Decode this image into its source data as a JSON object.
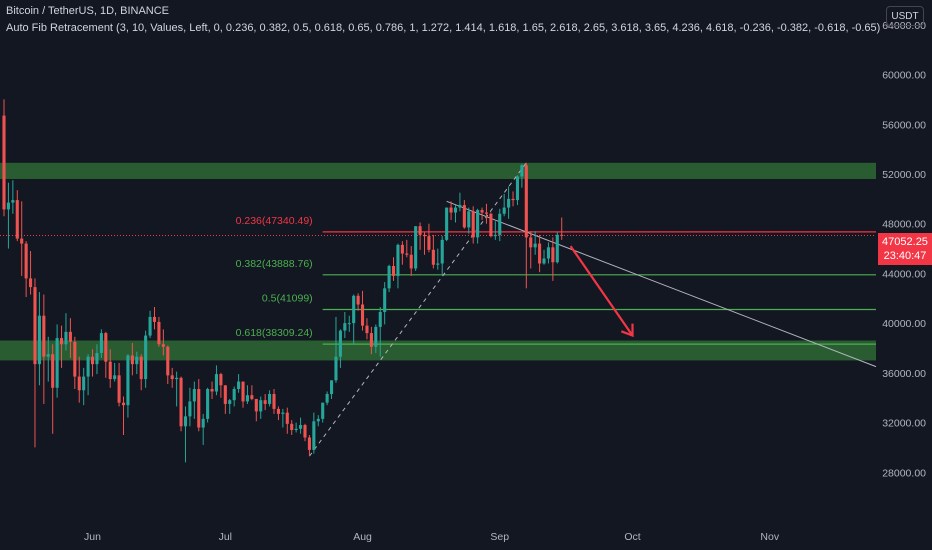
{
  "header": {
    "title": "Bitcoin / TetherUS, 1D, BINANCE",
    "indicator": "Auto Fib Retracement (3, 10, Values, Left, 0, 0.236, 0.382, 0.5, 0.618, 0.65, 0.786, 1, 1.272, 1.414, 1.618, 1.65, 2.618, 2.65, 3.618, 3.65, 4.236, 4.618, -0.236, -0.382, -0.618, -0.65)",
    "currency": "USDT"
  },
  "price_tag": {
    "price": "47052.25",
    "countdown": "23:40:47"
  },
  "colors": {
    "background": "#131722",
    "up": "#26a69a",
    "down": "#ef5350",
    "zone": "#2e6a34",
    "fib_red": "#f23645",
    "fib_green": "#4caf50",
    "arrow": "#f23645",
    "trendline": "#b2b5be"
  },
  "chart_data": {
    "type": "candlestick",
    "symbol": "BTCUSDT",
    "timeframe": "1D",
    "x_range": [
      "2021-05-12",
      "2021-11-25"
    ],
    "ylim": [
      24000,
      66000
    ],
    "y_ticks": [
      28000,
      32000,
      36000,
      40000,
      44000,
      48000,
      52000,
      56000,
      60000,
      64000
    ],
    "y_tick_labels": [
      "28000.00",
      "32000.00",
      "36000.00",
      "40000.00",
      "44000.00",
      "48000.00",
      "52000.00",
      "56000.00",
      "60000.00",
      "64000.00"
    ],
    "x_ticks": [
      "2021-06-01",
      "2021-07-01",
      "2021-08-01",
      "2021-09-01",
      "2021-10-01",
      "2021-11-01"
    ],
    "x_tick_labels": [
      "Jun",
      "Jul",
      "Aug",
      "Sep",
      "Oct",
      "Nov"
    ],
    "current_price": 47052.25,
    "candles": [
      {
        "date": "2021-05-12",
        "o": 56700,
        "h": 58000,
        "l": 48600,
        "c": 49150
      },
      {
        "date": "2021-05-13",
        "o": 49150,
        "h": 51300,
        "l": 46000,
        "c": 49700
      },
      {
        "date": "2021-05-14",
        "o": 49700,
        "h": 51500,
        "l": 48800,
        "c": 49900
      },
      {
        "date": "2021-05-15",
        "o": 49900,
        "h": 50700,
        "l": 46600,
        "c": 46800
      },
      {
        "date": "2021-05-16",
        "o": 46800,
        "h": 49800,
        "l": 43800,
        "c": 46400
      },
      {
        "date": "2021-05-17",
        "o": 46400,
        "h": 46600,
        "l": 42100,
        "c": 43600
      },
      {
        "date": "2021-05-18",
        "o": 43600,
        "h": 45800,
        "l": 42300,
        "c": 42900
      },
      {
        "date": "2021-05-19",
        "o": 42900,
        "h": 43600,
        "l": 30000,
        "c": 36700
      },
      {
        "date": "2021-05-20",
        "o": 36700,
        "h": 42500,
        "l": 35000,
        "c": 40600
      },
      {
        "date": "2021-05-21",
        "o": 40600,
        "h": 42300,
        "l": 33500,
        "c": 37300
      },
      {
        "date": "2021-05-22",
        "o": 37300,
        "h": 38900,
        "l": 35300,
        "c": 37500
      },
      {
        "date": "2021-05-23",
        "o": 37500,
        "h": 38300,
        "l": 31100,
        "c": 34800
      },
      {
        "date": "2021-05-24",
        "o": 34800,
        "h": 39900,
        "l": 34000,
        "c": 38800
      },
      {
        "date": "2021-05-25",
        "o": 38800,
        "h": 39800,
        "l": 36400,
        "c": 38300
      },
      {
        "date": "2021-05-26",
        "o": 38300,
        "h": 40800,
        "l": 37800,
        "c": 39300
      },
      {
        "date": "2021-05-27",
        "o": 39300,
        "h": 40400,
        "l": 37200,
        "c": 38500
      },
      {
        "date": "2021-05-28",
        "o": 38500,
        "h": 38900,
        "l": 34700,
        "c": 35700
      },
      {
        "date": "2021-05-29",
        "o": 35700,
        "h": 37300,
        "l": 33600,
        "c": 34600
      },
      {
        "date": "2021-05-30",
        "o": 34600,
        "h": 36400,
        "l": 33400,
        "c": 35700
      },
      {
        "date": "2021-05-31",
        "o": 35700,
        "h": 37500,
        "l": 34200,
        "c": 37300
      },
      {
        "date": "2021-06-01",
        "o": 37300,
        "h": 37900,
        "l": 35700,
        "c": 36700
      },
      {
        "date": "2021-06-02",
        "o": 36700,
        "h": 38300,
        "l": 35900,
        "c": 37600
      },
      {
        "date": "2021-06-03",
        "o": 37600,
        "h": 39500,
        "l": 37200,
        "c": 39200
      },
      {
        "date": "2021-06-04",
        "o": 39200,
        "h": 39300,
        "l": 35600,
        "c": 36900
      },
      {
        "date": "2021-06-05",
        "o": 36900,
        "h": 37900,
        "l": 34800,
        "c": 35500
      },
      {
        "date": "2021-06-06",
        "o": 35500,
        "h": 36800,
        "l": 35300,
        "c": 35800
      },
      {
        "date": "2021-06-07",
        "o": 35800,
        "h": 36800,
        "l": 33300,
        "c": 33600
      },
      {
        "date": "2021-06-08",
        "o": 33600,
        "h": 34100,
        "l": 31000,
        "c": 33400
      },
      {
        "date": "2021-06-09",
        "o": 33400,
        "h": 37500,
        "l": 32400,
        "c": 37400
      },
      {
        "date": "2021-06-10",
        "o": 37400,
        "h": 38400,
        "l": 35800,
        "c": 36700
      },
      {
        "date": "2021-06-11",
        "o": 36700,
        "h": 37700,
        "l": 35900,
        "c": 37300
      },
      {
        "date": "2021-06-12",
        "o": 37300,
        "h": 37500,
        "l": 34600,
        "c": 35500
      },
      {
        "date": "2021-06-13",
        "o": 35500,
        "h": 39400,
        "l": 34800,
        "c": 39000
      },
      {
        "date": "2021-06-14",
        "o": 39000,
        "h": 41000,
        "l": 38800,
        "c": 40500
      },
      {
        "date": "2021-06-15",
        "o": 40500,
        "h": 41300,
        "l": 39500,
        "c": 40100
      },
      {
        "date": "2021-06-16",
        "o": 40100,
        "h": 40500,
        "l": 38100,
        "c": 38300
      },
      {
        "date": "2021-06-17",
        "o": 38300,
        "h": 39500,
        "l": 37400,
        "c": 38100
      },
      {
        "date": "2021-06-18",
        "o": 38100,
        "h": 38200,
        "l": 35100,
        "c": 35800
      },
      {
        "date": "2021-06-19",
        "o": 35800,
        "h": 36400,
        "l": 34800,
        "c": 35500
      },
      {
        "date": "2021-06-20",
        "o": 35500,
        "h": 36100,
        "l": 33300,
        "c": 35600
      },
      {
        "date": "2021-06-21",
        "o": 35600,
        "h": 35700,
        "l": 31300,
        "c": 31700
      },
      {
        "date": "2021-06-22",
        "o": 31700,
        "h": 33300,
        "l": 28800,
        "c": 32500
      },
      {
        "date": "2021-06-23",
        "o": 32500,
        "h": 34800,
        "l": 31700,
        "c": 33700
      },
      {
        "date": "2021-06-24",
        "o": 33700,
        "h": 35300,
        "l": 32300,
        "c": 34700
      },
      {
        "date": "2021-06-25",
        "o": 34700,
        "h": 35500,
        "l": 31300,
        "c": 31600
      },
      {
        "date": "2021-06-26",
        "o": 31600,
        "h": 32700,
        "l": 30200,
        "c": 32300
      },
      {
        "date": "2021-06-27",
        "o": 32300,
        "h": 34800,
        "l": 32000,
        "c": 34700
      },
      {
        "date": "2021-06-28",
        "o": 34700,
        "h": 35300,
        "l": 33900,
        "c": 34500
      },
      {
        "date": "2021-06-29",
        "o": 34500,
        "h": 36600,
        "l": 34200,
        "c": 35900
      },
      {
        "date": "2021-06-30",
        "o": 35900,
        "h": 36000,
        "l": 34000,
        "c": 35000
      },
      {
        "date": "2021-07-01",
        "o": 35000,
        "h": 35000,
        "l": 32700,
        "c": 33500
      },
      {
        "date": "2021-07-02",
        "o": 33500,
        "h": 33900,
        "l": 32700,
        "c": 33800
      },
      {
        "date": "2021-07-03",
        "o": 33800,
        "h": 34900,
        "l": 33300,
        "c": 34700
      },
      {
        "date": "2021-07-04",
        "o": 34700,
        "h": 35900,
        "l": 34400,
        "c": 35300
      },
      {
        "date": "2021-07-05",
        "o": 35300,
        "h": 35300,
        "l": 33200,
        "c": 33700
      },
      {
        "date": "2021-07-06",
        "o": 33700,
        "h": 35000,
        "l": 33500,
        "c": 34200
      },
      {
        "date": "2021-07-07",
        "o": 34200,
        "h": 35000,
        "l": 33800,
        "c": 33900
      },
      {
        "date": "2021-07-08",
        "o": 33900,
        "h": 33900,
        "l": 32100,
        "c": 32900
      },
      {
        "date": "2021-07-09",
        "o": 32900,
        "h": 34100,
        "l": 32300,
        "c": 33800
      },
      {
        "date": "2021-07-10",
        "o": 33800,
        "h": 34300,
        "l": 33000,
        "c": 33500
      },
      {
        "date": "2021-07-11",
        "o": 33500,
        "h": 34600,
        "l": 33300,
        "c": 34300
      },
      {
        "date": "2021-07-12",
        "o": 34300,
        "h": 34700,
        "l": 32700,
        "c": 33100
      },
      {
        "date": "2021-07-13",
        "o": 33100,
        "h": 33300,
        "l": 32200,
        "c": 32700
      },
      {
        "date": "2021-07-14",
        "o": 32700,
        "h": 33100,
        "l": 31600,
        "c": 32800
      },
      {
        "date": "2021-07-15",
        "o": 32800,
        "h": 33200,
        "l": 31100,
        "c": 31900
      },
      {
        "date": "2021-07-16",
        "o": 31900,
        "h": 32200,
        "l": 31000,
        "c": 31400
      },
      {
        "date": "2021-07-17",
        "o": 31400,
        "h": 32000,
        "l": 31200,
        "c": 31500
      },
      {
        "date": "2021-07-18",
        "o": 31500,
        "h": 32400,
        "l": 31100,
        "c": 31800
      },
      {
        "date": "2021-07-19",
        "o": 31800,
        "h": 31900,
        "l": 30500,
        "c": 30800
      },
      {
        "date": "2021-07-20",
        "o": 30800,
        "h": 31000,
        "l": 29300,
        "c": 29800
      },
      {
        "date": "2021-07-21",
        "o": 29800,
        "h": 32800,
        "l": 29500,
        "c": 32100
      },
      {
        "date": "2021-07-22",
        "o": 32100,
        "h": 32600,
        "l": 31700,
        "c": 32300
      },
      {
        "date": "2021-07-23",
        "o": 32300,
        "h": 33600,
        "l": 32000,
        "c": 33600
      },
      {
        "date": "2021-07-24",
        "o": 33600,
        "h": 34500,
        "l": 33400,
        "c": 34300
      },
      {
        "date": "2021-07-25",
        "o": 34300,
        "h": 35400,
        "l": 33900,
        "c": 35400
      },
      {
        "date": "2021-07-26",
        "o": 35400,
        "h": 40500,
        "l": 35200,
        "c": 37300
      },
      {
        "date": "2021-07-27",
        "o": 37300,
        "h": 39500,
        "l": 36400,
        "c": 39400
      },
      {
        "date": "2021-07-28",
        "o": 39400,
        "h": 40900,
        "l": 38800,
        "c": 40000
      },
      {
        "date": "2021-07-29",
        "o": 40000,
        "h": 40600,
        "l": 39300,
        "c": 40000
      },
      {
        "date": "2021-07-30",
        "o": 40000,
        "h": 42300,
        "l": 38300,
        "c": 42200
      },
      {
        "date": "2021-07-31",
        "o": 42200,
        "h": 42400,
        "l": 41000,
        "c": 41500
      },
      {
        "date": "2021-08-01",
        "o": 41500,
        "h": 42600,
        "l": 39400,
        "c": 39800
      },
      {
        "date": "2021-08-02",
        "o": 39800,
        "h": 40400,
        "l": 38700,
        "c": 39200
      },
      {
        "date": "2021-08-03",
        "o": 39200,
        "h": 39700,
        "l": 37500,
        "c": 38100
      },
      {
        "date": "2021-08-04",
        "o": 38100,
        "h": 39900,
        "l": 37600,
        "c": 39700
      },
      {
        "date": "2021-08-05",
        "o": 39700,
        "h": 41300,
        "l": 37300,
        "c": 40900
      },
      {
        "date": "2021-08-06",
        "o": 40900,
        "h": 43300,
        "l": 39900,
        "c": 42800
      },
      {
        "date": "2021-08-07",
        "o": 42800,
        "h": 44700,
        "l": 42500,
        "c": 44600
      },
      {
        "date": "2021-08-08",
        "o": 44600,
        "h": 45300,
        "l": 43400,
        "c": 43800
      },
      {
        "date": "2021-08-09",
        "o": 43800,
        "h": 46400,
        "l": 42800,
        "c": 46300
      },
      {
        "date": "2021-08-10",
        "o": 46300,
        "h": 46600,
        "l": 44700,
        "c": 45600
      },
      {
        "date": "2021-08-11",
        "o": 45600,
        "h": 46700,
        "l": 45300,
        "c": 45500
      },
      {
        "date": "2021-08-12",
        "o": 45500,
        "h": 46200,
        "l": 43800,
        "c": 44400
      },
      {
        "date": "2021-08-13",
        "o": 44400,
        "h": 47800,
        "l": 44200,
        "c": 47800
      },
      {
        "date": "2021-08-14",
        "o": 47800,
        "h": 48100,
        "l": 45900,
        "c": 47100
      },
      {
        "date": "2021-08-15",
        "o": 47100,
        "h": 47300,
        "l": 45500,
        "c": 47000
      },
      {
        "date": "2021-08-16",
        "o": 47000,
        "h": 48000,
        "l": 45700,
        "c": 45900
      },
      {
        "date": "2021-08-17",
        "o": 45900,
        "h": 47100,
        "l": 44400,
        "c": 44700
      },
      {
        "date": "2021-08-18",
        "o": 44700,
        "h": 46000,
        "l": 44300,
        "c": 44800
      },
      {
        "date": "2021-08-19",
        "o": 44800,
        "h": 47000,
        "l": 43900,
        "c": 46700
      },
      {
        "date": "2021-08-20",
        "o": 46700,
        "h": 49300,
        "l": 46600,
        "c": 49300
      },
      {
        "date": "2021-08-21",
        "o": 49300,
        "h": 49800,
        "l": 48300,
        "c": 48900
      },
      {
        "date": "2021-08-22",
        "o": 48900,
        "h": 49500,
        "l": 48100,
        "c": 49300
      },
      {
        "date": "2021-08-23",
        "o": 49300,
        "h": 50500,
        "l": 49000,
        "c": 49500
      },
      {
        "date": "2021-08-24",
        "o": 49500,
        "h": 49900,
        "l": 47600,
        "c": 47700
      },
      {
        "date": "2021-08-25",
        "o": 47700,
        "h": 49300,
        "l": 47200,
        "c": 49000
      },
      {
        "date": "2021-08-26",
        "o": 49000,
        "h": 49400,
        "l": 46400,
        "c": 46900
      },
      {
        "date": "2021-08-27",
        "o": 46900,
        "h": 49200,
        "l": 46400,
        "c": 49100
      },
      {
        "date": "2021-08-28",
        "o": 49100,
        "h": 49300,
        "l": 48300,
        "c": 48900
      },
      {
        "date": "2021-08-29",
        "o": 48900,
        "h": 49600,
        "l": 48000,
        "c": 48800
      },
      {
        "date": "2021-08-30",
        "o": 48800,
        "h": 48900,
        "l": 46900,
        "c": 47000
      },
      {
        "date": "2021-08-31",
        "o": 47000,
        "h": 48200,
        "l": 46700,
        "c": 47100
      },
      {
        "date": "2021-09-01",
        "o": 47100,
        "h": 49200,
        "l": 46600,
        "c": 48800
      },
      {
        "date": "2021-09-02",
        "o": 48800,
        "h": 50400,
        "l": 48600,
        "c": 49300
      },
      {
        "date": "2021-09-03",
        "o": 49300,
        "h": 51000,
        "l": 48400,
        "c": 50000
      },
      {
        "date": "2021-09-04",
        "o": 50000,
        "h": 50600,
        "l": 49400,
        "c": 49900
      },
      {
        "date": "2021-09-05",
        "o": 49900,
        "h": 51900,
        "l": 49500,
        "c": 51800
      },
      {
        "date": "2021-09-06",
        "o": 51800,
        "h": 52800,
        "l": 50900,
        "c": 52700
      },
      {
        "date": "2021-09-07",
        "o": 52700,
        "h": 52900,
        "l": 42800,
        "c": 46900
      },
      {
        "date": "2021-09-08",
        "o": 46900,
        "h": 47400,
        "l": 44400,
        "c": 46100
      },
      {
        "date": "2021-09-09",
        "o": 46100,
        "h": 47400,
        "l": 45500,
        "c": 46400
      },
      {
        "date": "2021-09-10",
        "o": 46400,
        "h": 47100,
        "l": 44100,
        "c": 44800
      },
      {
        "date": "2021-09-11",
        "o": 44800,
        "h": 45900,
        "l": 44700,
        "c": 45200
      },
      {
        "date": "2021-09-12",
        "o": 45200,
        "h": 46500,
        "l": 44800,
        "c": 46100
      },
      {
        "date": "2021-09-13",
        "o": 46100,
        "h": 46900,
        "l": 43400,
        "c": 44900
      },
      {
        "date": "2021-09-14",
        "o": 44900,
        "h": 47300,
        "l": 44800,
        "c": 47100
      },
      {
        "date": "2021-09-15",
        "o": 47100,
        "h": 48500,
        "l": 46700,
        "c": 47052.25
      }
    ],
    "fib_levels": [
      {
        "ratio": 0.236,
        "price": 47340.49,
        "label": "0.236(47340.49)",
        "color": "#f23645",
        "from": "2021-07-23"
      },
      {
        "ratio": 0.382,
        "price": 43888.76,
        "label": "0.382(43888.76)",
        "color": "#4caf50",
        "from": "2021-07-23"
      },
      {
        "ratio": 0.5,
        "price": 41099,
        "label": "0.5(41099)",
        "color": "#4caf50",
        "from": "2021-07-23"
      },
      {
        "ratio": 0.618,
        "price": 38309.24,
        "label": "0.618(38309.24)",
        "color": "#4caf50",
        "from": "2021-07-23"
      }
    ],
    "zones": [
      {
        "from_price": 51600,
        "to_price": 52900
      },
      {
        "from_price": 37000,
        "to_price": 38600
      }
    ],
    "trendline": {
      "from": [
        "2021-08-20",
        49800
      ],
      "to": [
        "2021-11-25",
        36500
      ]
    },
    "dashed_line": {
      "from": [
        "2021-07-20",
        29300
      ],
      "to": [
        "2021-09-07",
        52900
      ]
    },
    "arrow": {
      "from": [
        "2021-09-17",
        46200
      ],
      "to": [
        "2021-10-01",
        39000
      ]
    },
    "red_dotted_line_price": 47052.25
  }
}
